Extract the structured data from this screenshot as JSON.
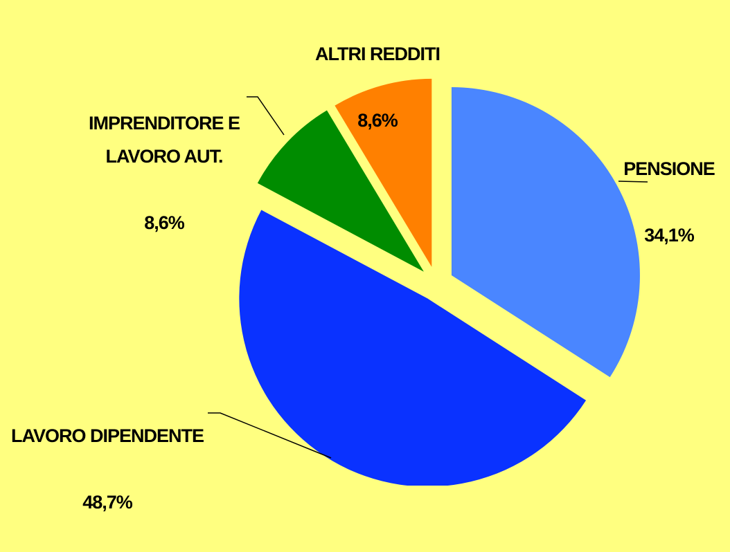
{
  "chart_data": {
    "type": "pie",
    "categories": [
      "PENSIONE",
      "LAVORO DIPENDENTE",
      "IMPRENDITORE E\nLAVORO AUT.",
      "ALTRI REDDITI"
    ],
    "values": [
      34.1,
      48.7,
      8.6,
      8.6
    ],
    "value_labels": [
      "34,1%",
      "48,7%",
      "8,6%",
      "8,6%"
    ],
    "colors": [
      "#4a86ff",
      "#0a32ff",
      "#008c00",
      "#ff8000"
    ]
  }
}
